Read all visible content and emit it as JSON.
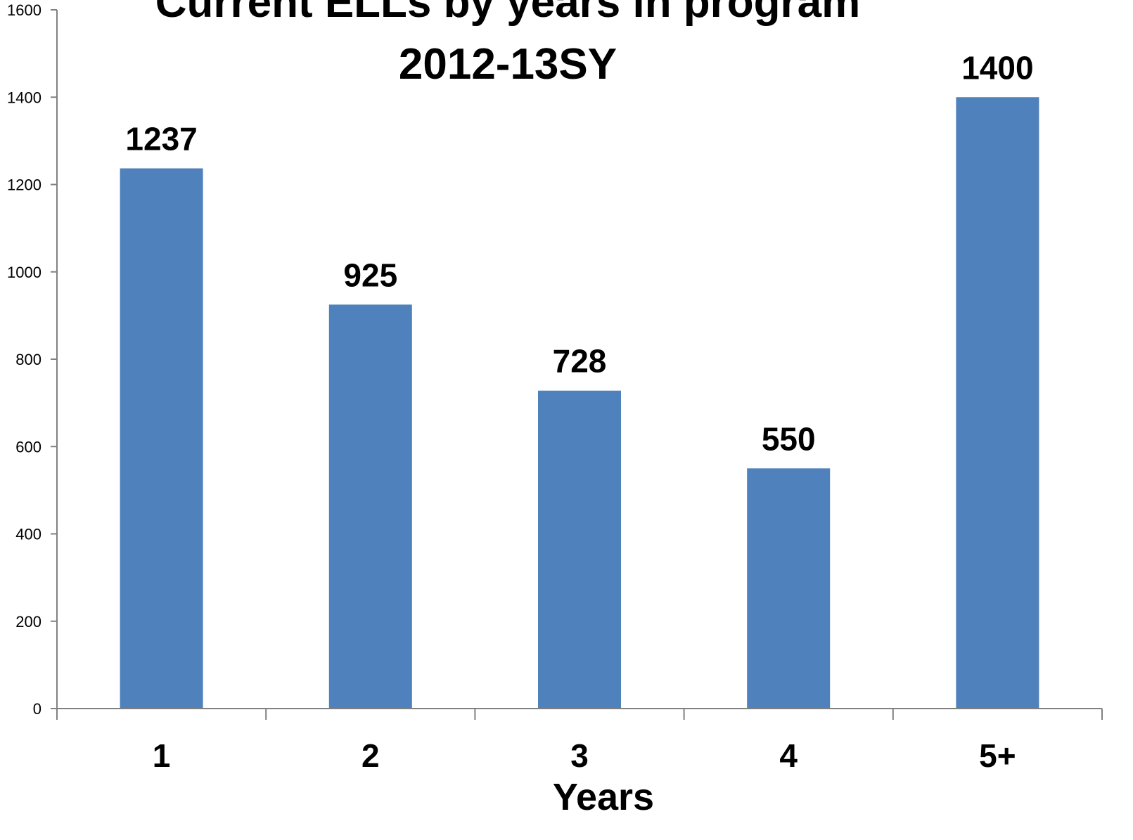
{
  "chart_data": {
    "type": "bar",
    "title": "Current ELLs by years in program",
    "subtitle": "2012-13SY",
    "xlabel": "Years",
    "ylabel": "",
    "categories": [
      "1",
      "2",
      "3",
      "4",
      "5+"
    ],
    "values": [
      1237,
      925,
      728,
      550,
      1400
    ],
    "data_labels": [
      "1237",
      "925",
      "728",
      "550",
      "1400"
    ],
    "ylim": [
      0,
      1600
    ],
    "yticks": [
      0,
      200,
      400,
      600,
      800,
      1000,
      1200,
      1400,
      1600
    ],
    "ytick_labels": [
      "0",
      "200",
      "400",
      "600",
      "800",
      "1000",
      "1200",
      "1400",
      "1600"
    ],
    "grid": false,
    "legend": "none",
    "bar_color": "#4F81BD",
    "axis_color": "#808080"
  }
}
